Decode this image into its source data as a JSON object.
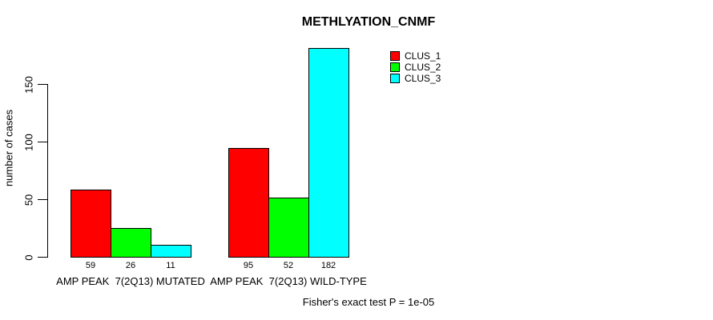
{
  "chart_data": {
    "type": "bar",
    "title": "METHLYATION_CNMF",
    "ylabel": "number of cases",
    "xlabel": "",
    "yticks": [
      0,
      50,
      100,
      150
    ],
    "ylim": [
      0,
      190
    ],
    "grid": false,
    "legend_position": "top-right",
    "categories": [
      "AMP PEAK  7(2Q13) MUTATED",
      "AMP PEAK  7(2Q13) WILD-TYPE"
    ],
    "series": [
      {
        "name": "CLUS_1",
        "color": "#ff0000",
        "values": [
          59,
          95
        ]
      },
      {
        "name": "CLUS_2",
        "color": "#00ff00",
        "values": [
          26,
          52
        ]
      },
      {
        "name": "CLUS_3",
        "color": "#00ffff",
        "values": [
          11,
          182
        ]
      }
    ],
    "show_bar_values": true,
    "annotation": "Fisher's exact test P = 1e-05"
  },
  "colors": {
    "bar_border": "#000000",
    "axis": "#000000",
    "text": "#000000",
    "background": "#ffffff"
  }
}
